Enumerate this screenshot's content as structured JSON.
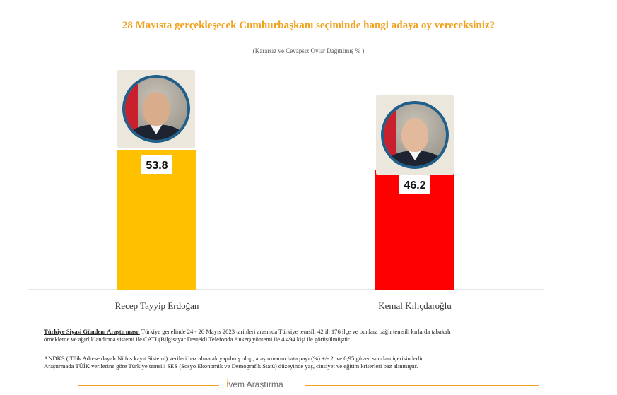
{
  "chart_data": {
    "type": "bar",
    "title": "28 Mayısta gerçekleşecek Cumhurbaşkanı seçiminde hangi adaya oy vereceksiniz?",
    "subtitle": "(Kararsız ve Cevapsız Oylar Dağıtılmış % )",
    "categories": [
      "Recep Tayyip Erdoğan",
      "Kemal Kılıçdaroğlu"
    ],
    "values": [
      53.8,
      46.2
    ],
    "value_labels": [
      "53.8",
      "46.2"
    ],
    "colors": [
      "#ffc000",
      "#ff0000"
    ],
    "ylim": [
      0,
      60
    ],
    "grid": false,
    "legend": "none",
    "icons": [
      "erdogan-portrait-icon",
      "kilicdaroglu-portrait-icon"
    ]
  },
  "methodology": {
    "heading": "Türkiye Siyasi Gündem Araştırması:",
    "line1": " Türkiye genelinde 24 - 26 Mayıs 2023 tarihleri arasında Türkiye temsili 42 il, 176 ilçe ve bunlara bağlı temsili kırlarda tabakalı",
    "line2": "örnekleme ve ağırlıklandırma sistemi ile  CATI (Bilgisayar Destekli Telefonda Anket) yöntemi ile  4.494 kişi ile görüşülmüştür.",
    "line3": "ANDKS ( Tüik Adrese dayalı Nüfus kayıt Sistemi) verileri baz alınarak yapılmış olup, araştırmanın hata payı (%) +/- 2, ve  0,95 güven sınırları içerisindedir.",
    "line4": "Araştırmada TÜİK verilerine göre Türkiye temsili SES (Sosyo Ekonomik ve Demografik  Statü) düzeyinde yaş, cinsiyet ve eğitim kriterleri  baz alınmıştır."
  },
  "brand": {
    "first": "İ",
    "rest": "vem Araştırma"
  }
}
